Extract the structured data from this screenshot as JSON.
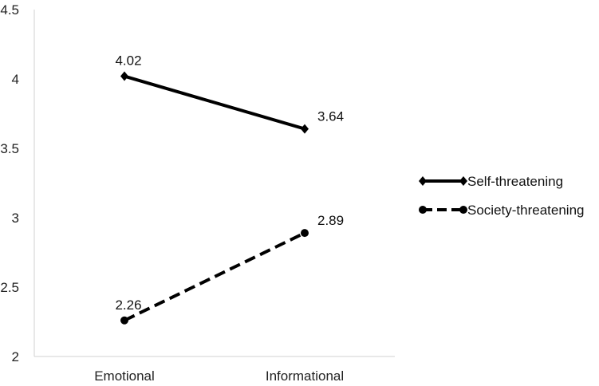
{
  "chart_data": {
    "type": "line",
    "title": "",
    "xlabel": "",
    "ylabel": "",
    "categories": [
      "Emotional",
      "Informational"
    ],
    "ylim": [
      2,
      4.5
    ],
    "yticks": [
      "2",
      "2.5",
      "3",
      "3.5",
      "4",
      "4.5"
    ],
    "grid": false,
    "legend_position": "right",
    "series": [
      {
        "name": "Self-threatening",
        "values": [
          4.02,
          3.64
        ],
        "labels": [
          "4.02",
          "3.64"
        ],
        "style": "solid",
        "marker": "diamond",
        "color": "#000000"
      },
      {
        "name": "Society-threatening",
        "values": [
          2.26,
          2.89
        ],
        "labels": [
          "2.26",
          "2.89"
        ],
        "style": "dashed",
        "marker": "circle",
        "color": "#000000"
      }
    ]
  }
}
